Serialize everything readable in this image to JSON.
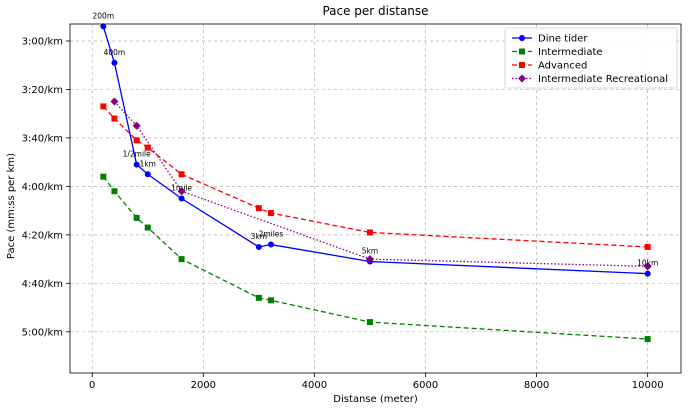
{
  "chart_data": {
    "type": "line",
    "title": "Pace per distanse",
    "xlabel": "Distanse (meter)",
    "ylabel": "Pace (mm:ss per km)",
    "xlim": [
      -400,
      10600
    ],
    "ylim_seconds": [
      173,
      317
    ],
    "y_inverted": true,
    "grid": true,
    "legend_position": "top-right",
    "x_ticks": [
      0,
      2000,
      4000,
      6000,
      8000,
      10000
    ],
    "x_tick_labels": [
      "0",
      "2000",
      "4000",
      "6000",
      "8000",
      "10000"
    ],
    "y_ticks_seconds": [
      180,
      200,
      220,
      240,
      260,
      280,
      300
    ],
    "y_tick_labels": [
      "3:00/km",
      "3:20/km",
      "3:40/km",
      "4:00/km",
      "4:20/km",
      "4:40/km",
      "5:00/km"
    ],
    "series": [
      {
        "name": "Dine tider",
        "color": "#0000ff",
        "marker": "circle",
        "line_style": "solid",
        "x": [
          200,
          400,
          800,
          1000,
          1609,
          3000,
          3218,
          5000,
          10000
        ],
        "y_seconds": [
          174,
          189,
          231,
          235,
          245,
          265,
          264,
          271,
          276
        ]
      },
      {
        "name": "Intermediate",
        "color": "#008000",
        "marker": "square",
        "line_style": "dashed",
        "x": [
          200,
          400,
          800,
          1000,
          1609,
          3000,
          3218,
          5000,
          10000
        ],
        "y_seconds": [
          236,
          242,
          253,
          257,
          270,
          286,
          287,
          296,
          303
        ]
      },
      {
        "name": "Advanced",
        "color": "#ff0000",
        "marker": "square",
        "line_style": "dashed",
        "x": [
          200,
          400,
          800,
          1000,
          1609,
          3000,
          3218,
          5000,
          10000
        ],
        "y_seconds": [
          207,
          212,
          221,
          224,
          235,
          249,
          251,
          259,
          265
        ]
      },
      {
        "name": "Intermediate Recreational",
        "color": "#800080",
        "marker": "diamond",
        "line_style": "dotted",
        "x": [
          400,
          800,
          1609,
          5000,
          10000
        ],
        "y_seconds": [
          205,
          215,
          242,
          270,
          273
        ]
      }
    ],
    "annotations": [
      {
        "text": "200m",
        "x": 200,
        "y_seconds": 174
      },
      {
        "text": "400m",
        "x": 400,
        "y_seconds": 189
      },
      {
        "text": "1/2mile",
        "x": 800,
        "y_seconds": 231
      },
      {
        "text": "1km",
        "x": 1000,
        "y_seconds": 235
      },
      {
        "text": "1mile",
        "x": 1609,
        "y_seconds": 245
      },
      {
        "text": "3km",
        "x": 3000,
        "y_seconds": 265
      },
      {
        "text": "2miles",
        "x": 3218,
        "y_seconds": 264
      },
      {
        "text": "5km",
        "x": 5000,
        "y_seconds": 271
      },
      {
        "text": "10km",
        "x": 10000,
        "y_seconds": 276
      }
    ]
  }
}
